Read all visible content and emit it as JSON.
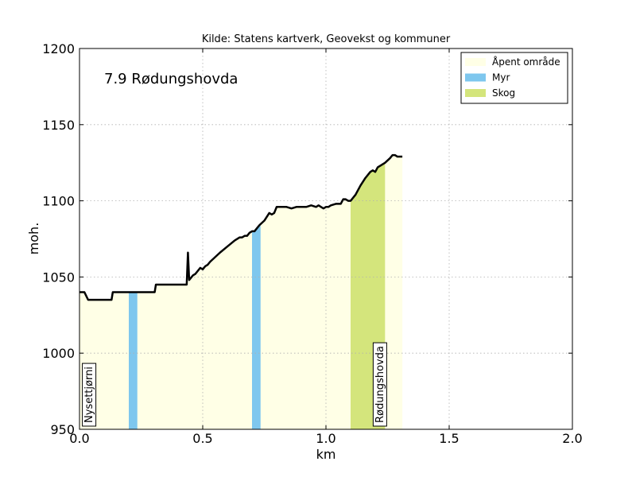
{
  "chart_data": {
    "type": "area",
    "source_title": "Kilde: Statens kartverk, Geovekst og kommuner",
    "route_label": "7.9 Rødungshovda",
    "xlabel": "km",
    "ylabel": "moh.",
    "xlim": [
      0.0,
      2.0
    ],
    "ylim": [
      950,
      1200
    ],
    "xticks": [
      0.0,
      0.5,
      1.0,
      1.5,
      2.0
    ],
    "xtick_labels": [
      "0.0",
      "0.5",
      "1.0",
      "1.5",
      "2.0"
    ],
    "yticks": [
      950,
      1000,
      1050,
      1100,
      1150,
      1200
    ],
    "ytick_labels": [
      "950",
      "1000",
      "1050",
      "1100",
      "1150",
      "1200"
    ],
    "grid": true,
    "legend_position": "top-right",
    "legend": [
      {
        "name": "Åpent område",
        "color": "#FFFFE6"
      },
      {
        "name": "Myr",
        "color": "#7EC7EE"
      },
      {
        "name": "Skog",
        "color": "#D4E57C"
      }
    ],
    "land_cover": [
      {
        "type": "Åpent område",
        "color": "#FFFFE6",
        "x_start": 0.0,
        "x_end": 0.2
      },
      {
        "type": "Myr",
        "color": "#7EC7EE",
        "x_start": 0.2,
        "x_end": 0.235
      },
      {
        "type": "Åpent område",
        "color": "#FFFFE6",
        "x_start": 0.235,
        "x_end": 0.7
      },
      {
        "type": "Myr",
        "color": "#7EC7EE",
        "x_start": 0.7,
        "x_end": 0.735
      },
      {
        "type": "Åpent område",
        "color": "#FFFFE6",
        "x_start": 0.735,
        "x_end": 1.1
      },
      {
        "type": "Skog",
        "color": "#D4E57C",
        "x_start": 1.1,
        "x_end": 1.24
      },
      {
        "type": "Åpent område",
        "color": "#FFFFE6",
        "x_start": 1.24,
        "x_end": 1.31
      }
    ],
    "profile": {
      "x": [
        0.0,
        0.02,
        0.035,
        0.06,
        0.1,
        0.13,
        0.135,
        0.2,
        0.25,
        0.305,
        0.31,
        0.35,
        0.4,
        0.435,
        0.44,
        0.445,
        0.45,
        0.46,
        0.47,
        0.48,
        0.49,
        0.5,
        0.51,
        0.52,
        0.53,
        0.55,
        0.57,
        0.6,
        0.63,
        0.65,
        0.66,
        0.67,
        0.68,
        0.69,
        0.7,
        0.71,
        0.72,
        0.73,
        0.75,
        0.77,
        0.78,
        0.79,
        0.8,
        0.81,
        0.82,
        0.84,
        0.86,
        0.88,
        0.9,
        0.92,
        0.94,
        0.96,
        0.97,
        0.98,
        0.99,
        1.0,
        1.01,
        1.02,
        1.04,
        1.06,
        1.07,
        1.08,
        1.09,
        1.1,
        1.12,
        1.14,
        1.16,
        1.18,
        1.19,
        1.2,
        1.21,
        1.22,
        1.24,
        1.26,
        1.27,
        1.28,
        1.29,
        1.3,
        1.31
      ],
      "y": [
        1040,
        1040,
        1035,
        1035,
        1035,
        1035,
        1040,
        1040,
        1040,
        1040,
        1045,
        1045,
        1045,
        1045,
        1066,
        1048,
        1049,
        1051,
        1052,
        1054,
        1056,
        1055,
        1057,
        1058,
        1060,
        1063,
        1066,
        1070,
        1074,
        1076,
        1076,
        1077,
        1077,
        1079,
        1080,
        1080,
        1082,
        1084,
        1087,
        1092,
        1091,
        1092,
        1096,
        1096,
        1096,
        1096,
        1095,
        1096,
        1096,
        1096,
        1097,
        1096,
        1097,
        1096,
        1095,
        1096,
        1096,
        1097,
        1098,
        1098,
        1101,
        1101,
        1100,
        1100,
        1104,
        1110,
        1115,
        1119,
        1120,
        1119,
        1122,
        1123,
        1125,
        1128,
        1130,
        1130,
        1129,
        1129,
        1129
      ]
    },
    "annotations": [
      {
        "text": "Nysettjørni",
        "x": 0.06
      },
      {
        "text": "Rødungshovda",
        "x": 1.24
      }
    ]
  }
}
